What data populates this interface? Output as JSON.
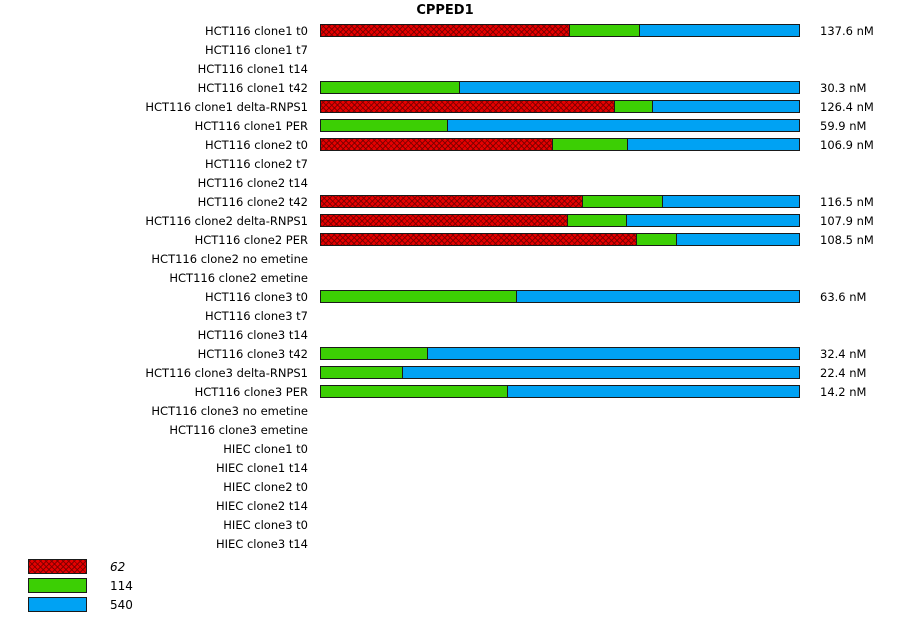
{
  "title": "CPPED1",
  "legend": {
    "items": [
      {
        "label": "62",
        "color": "#e60000",
        "hatch": true,
        "italic": true
      },
      {
        "label": "114",
        "color": "#3ccf04",
        "hatch": false,
        "italic": false
      },
      {
        "label": "540",
        "color": "#00a2f3",
        "hatch": false,
        "italic": false
      }
    ]
  },
  "chart_data": {
    "type": "bar",
    "orientation": "horizontal",
    "stacked": true,
    "normalized_percent": true,
    "title": "CPPED1",
    "xlabel": "",
    "ylabel": "",
    "legend_position": "bottom-left",
    "series_names": [
      "62",
      "114",
      "540"
    ],
    "value_unit": "nM",
    "categories": [
      "HCT116 clone1 t0",
      "HCT116 clone1 t7",
      "HCT116 clone1 t14",
      "HCT116 clone1 t42",
      "HCT116 clone1 delta-RNPS1",
      "HCT116 clone1 PER",
      "HCT116 clone2 t0",
      "HCT116 clone2 t7",
      "HCT116 clone2 t14",
      "HCT116 clone2 t42",
      "HCT116 clone2 delta-RNPS1",
      "HCT116 clone2 PER",
      "HCT116 clone2 no emetine",
      "HCT116 clone2 emetine",
      "HCT116 clone3 t0",
      "HCT116 clone3 t7",
      "HCT116 clone3 t14",
      "HCT116 clone3 t42",
      "HCT116 clone3 delta-RNPS1",
      "HCT116 clone3 PER",
      "HCT116 clone3 no emetine",
      "HCT116 clone3 emetine",
      "HIEC clone1 t0",
      "HIEC clone1 t14",
      "HIEC clone2 t0",
      "HIEC clone2 t14",
      "HIEC clone3 t0",
      "HIEC clone3 t14"
    ],
    "rows": [
      {
        "label": "HCT116 clone1 t0",
        "segments": [
          52.1,
          14.6,
          33.3
        ],
        "value": "137.6 nM"
      },
      {
        "label": "HCT116 clone1 t7",
        "segments": null,
        "value": ""
      },
      {
        "label": "HCT116 clone1 t14",
        "segments": null,
        "value": ""
      },
      {
        "label": "HCT116 clone1 t42",
        "segments": [
          0,
          29.2,
          70.8
        ],
        "value": "30.3 nM"
      },
      {
        "label": "HCT116 clone1 delta-RNPS1",
        "segments": [
          61.5,
          7.9,
          30.6
        ],
        "value": "126.4 nM"
      },
      {
        "label": "HCT116 clone1 PER",
        "segments": [
          0,
          26.7,
          73.3
        ],
        "value": "59.9 nM"
      },
      {
        "label": "HCT116 clone2 t0",
        "segments": [
          48.5,
          15.6,
          35.9
        ],
        "value": "106.9 nM"
      },
      {
        "label": "HCT116 clone2 t7",
        "segments": null,
        "value": ""
      },
      {
        "label": "HCT116 clone2 t14",
        "segments": null,
        "value": ""
      },
      {
        "label": "HCT116 clone2 t42",
        "segments": [
          54.8,
          16.7,
          28.5
        ],
        "value": "116.5 nM"
      },
      {
        "label": "HCT116 clone2 delta-RNPS1",
        "segments": [
          51.7,
          12.3,
          36.0
        ],
        "value": "107.9 nM"
      },
      {
        "label": "HCT116 clone2 PER",
        "segments": [
          66.0,
          8.3,
          25.7
        ],
        "value": "108.5 nM"
      },
      {
        "label": "HCT116 clone2 no emetine",
        "segments": null,
        "value": ""
      },
      {
        "label": "HCT116 clone2 emetine",
        "segments": null,
        "value": ""
      },
      {
        "label": "HCT116 clone3 t0",
        "segments": [
          0,
          41.0,
          59.0
        ],
        "value": "63.6 nM"
      },
      {
        "label": "HCT116 clone3 t7",
        "segments": null,
        "value": ""
      },
      {
        "label": "HCT116 clone3 t14",
        "segments": null,
        "value": ""
      },
      {
        "label": "HCT116 clone3 t42",
        "segments": [
          0,
          22.5,
          77.5
        ],
        "value": "32.4 nM"
      },
      {
        "label": "HCT116 clone3 delta-RNPS1",
        "segments": [
          0,
          17.3,
          82.7
        ],
        "value": "22.4 nM"
      },
      {
        "label": "HCT116 clone3 PER",
        "segments": [
          0,
          39.2,
          60.8
        ],
        "value": "14.2 nM"
      },
      {
        "label": "HCT116 clone3 no emetine",
        "segments": null,
        "value": ""
      },
      {
        "label": "HCT116 clone3 emetine",
        "segments": null,
        "value": ""
      },
      {
        "label": "HIEC clone1 t0",
        "segments": null,
        "value": ""
      },
      {
        "label": "HIEC clone1 t14",
        "segments": null,
        "value": ""
      },
      {
        "label": "HIEC clone2 t0",
        "segments": null,
        "value": ""
      },
      {
        "label": "HIEC clone2 t14",
        "segments": null,
        "value": ""
      },
      {
        "label": "HIEC clone3 t0",
        "segments": null,
        "value": ""
      },
      {
        "label": "HIEC clone3 t14",
        "segments": null,
        "value": ""
      }
    ]
  }
}
